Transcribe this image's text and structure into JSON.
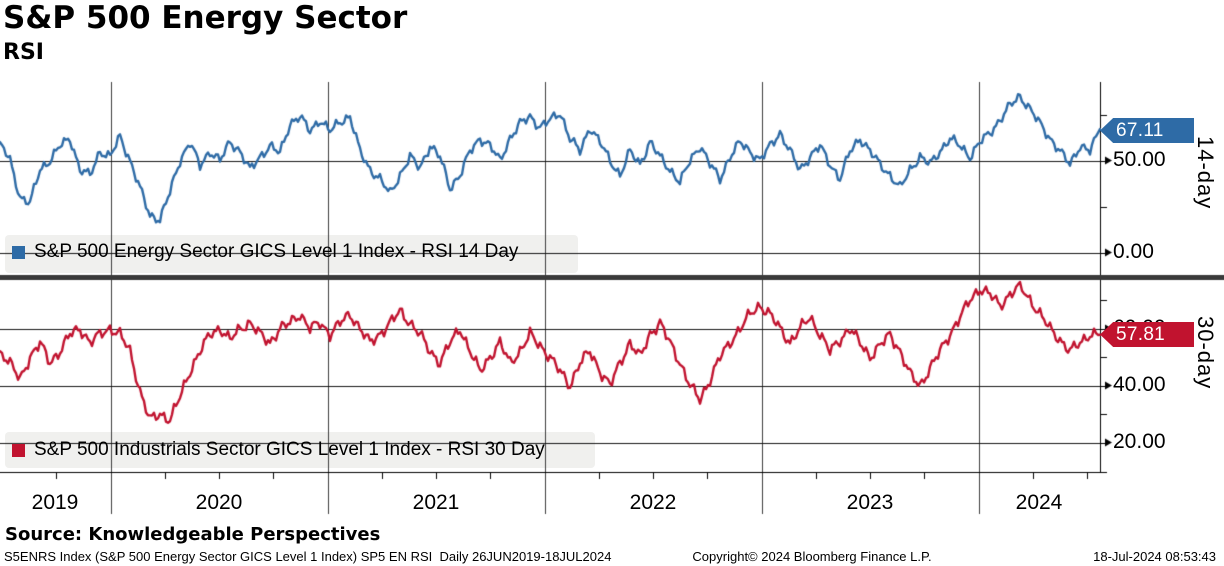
{
  "header": {
    "title": "S&P 500 Energy Sector",
    "subtitle": "RSI"
  },
  "panels": {
    "top": {
      "legend": "S&P 500 Energy Sector GICS Level 1 Index - RSI 14 Day",
      "side_label": "14-day",
      "tag_value": "67.11",
      "tick_labels": {
        "mid": "50.00",
        "low": "0.00"
      }
    },
    "bottom": {
      "legend": "S&P 500 Industrials Sector GICS Level 1 Index - RSI 30 Day",
      "side_label": "30-day",
      "tag_value": "57.81",
      "hidden_label": "60.00",
      "tick_labels": {
        "mid": "40.00",
        "low": "20.00"
      }
    }
  },
  "x_axis": {
    "year_labels": [
      "2019",
      "2020",
      "2021",
      "2022",
      "2023",
      "2024"
    ]
  },
  "source": "Source: Knowledgeable Perspectives",
  "footer": {
    "left": "S5ENRS Index (S&P 500 Energy Sector GICS Level 1 Index) SP5 EN RSI  Daily 26JUN2019-18JUL2024",
    "center": "Copyright© 2024 Bloomberg Finance L.P.",
    "right": "18-Jul-2024 08:53:43"
  },
  "colors": {
    "blue": "#2e6ba6",
    "red": "#c1132f",
    "legend_bg": "#f0f0ee",
    "divider": "#3a3a3a",
    "grid_vertical": "#3c3c3c",
    "grid_horizontal": "#161616",
    "axis": "#000000"
  },
  "chart_data": {
    "type": "line",
    "title": "S&P 500 Energy Sector RSI",
    "x_start_year": 2019.49,
    "x_end_year": 2024.55,
    "n_points": 111,
    "x_tick_years": [
      2019,
      2020,
      2021,
      2022,
      2023,
      2024
    ],
    "panels": [
      {
        "name": "RSI 14 Day",
        "series_name": "S&P 500 Energy Sector GICS Level 1 Index",
        "color": "#2e6ba6",
        "ylim": [
          0,
          92
        ],
        "gridline_values": [
          0,
          50
        ],
        "minor_tick_values": [
          25,
          75
        ],
        "last_value": 67.11,
        "values": [
          60,
          50,
          30,
          27,
          45,
          50,
          58,
          62,
          45,
          42,
          55,
          52,
          63,
          50,
          35,
          20,
          18,
          33,
          50,
          60,
          47,
          55,
          50,
          60,
          55,
          45,
          52,
          58,
          54,
          70,
          74,
          66,
          72,
          66,
          71,
          74,
          55,
          45,
          40,
          32,
          42,
          52,
          46,
          58,
          52,
          35,
          42,
          55,
          62,
          58,
          50,
          62,
          70,
          74,
          68,
          72,
          76,
          62,
          55,
          68,
          60,
          50,
          42,
          55,
          48,
          60,
          52,
          45,
          38,
          50,
          58,
          48,
          40,
          52,
          60,
          55,
          50,
          58,
          65,
          55,
          45,
          52,
          58,
          48,
          40,
          55,
          62,
          55,
          48,
          42,
          35,
          45,
          52,
          48,
          55,
          62,
          58,
          52,
          60,
          65,
          72,
          80,
          85,
          78,
          70,
          62,
          55,
          48,
          58,
          55,
          67.11
        ]
      },
      {
        "name": "RSI 30 Day",
        "series_name": "S&P 500 Industrials Sector GICS Level 1 Index",
        "color": "#c1132f",
        "ylim": [
          9,
          76
        ],
        "gridline_values": [
          20,
          40,
          60
        ],
        "minor_tick_values": [
          30,
          50,
          70
        ],
        "last_value": 57.81,
        "values": [
          52,
          48,
          42,
          50,
          55,
          48,
          52,
          58,
          60,
          55,
          58,
          60,
          58,
          52,
          38,
          28,
          30,
          28,
          36,
          45,
          52,
          58,
          60,
          56,
          60,
          62,
          58,
          55,
          60,
          62,
          65,
          60,
          62,
          58,
          62,
          65,
          60,
          55,
          58,
          62,
          66,
          62,
          58,
          52,
          48,
          55,
          60,
          52,
          45,
          50,
          55,
          48,
          52,
          58,
          54,
          50,
          45,
          40,
          48,
          52,
          45,
          40,
          48,
          55,
          50,
          58,
          62,
          55,
          48,
          40,
          35,
          42,
          50,
          55,
          60,
          65,
          68,
          65,
          60,
          55,
          60,
          64,
          58,
          52,
          56,
          60,
          55,
          50,
          54,
          58,
          52,
          44,
          40,
          46,
          52,
          58,
          64,
          70,
          74,
          72,
          68,
          72,
          75,
          70,
          65,
          60,
          56,
          52,
          55,
          58,
          57.81
        ]
      }
    ]
  }
}
